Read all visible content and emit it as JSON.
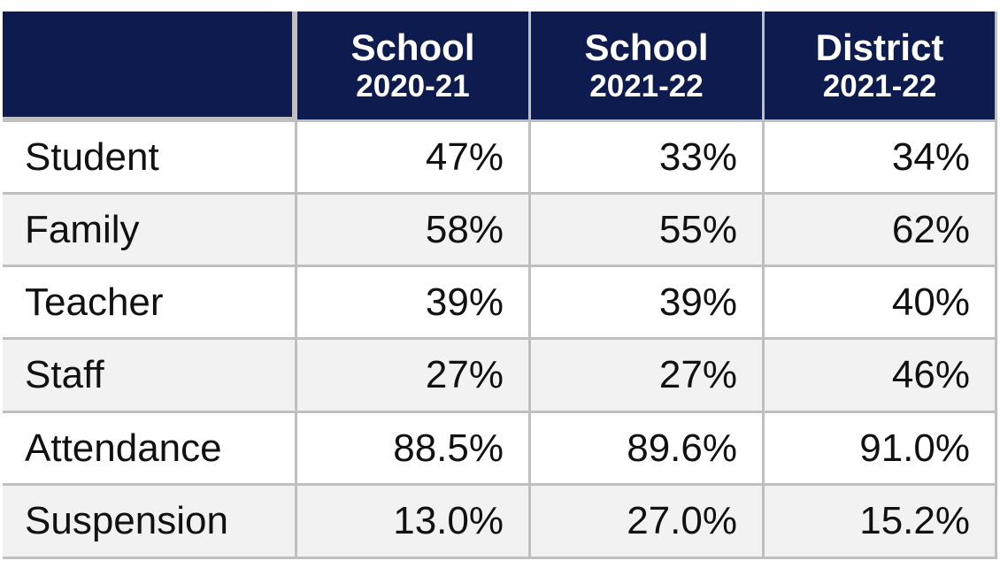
{
  "table": {
    "header": [
      {
        "line1": "School",
        "line2": "2020-21"
      },
      {
        "line1": "School",
        "line2": "2021-22"
      },
      {
        "line1": "District",
        "line2": "2021-22"
      }
    ],
    "rows": [
      [
        "Student",
        "47%",
        "33%",
        "34%"
      ],
      [
        "Family",
        "58%",
        "55%",
        "62%"
      ],
      [
        "Teacher",
        "39%",
        "39%",
        "40%"
      ],
      [
        "Staff",
        "27%",
        "27%",
        "46%"
      ],
      [
        "Attendance",
        "88.5%",
        "89.6%",
        "91.0%"
      ],
      [
        "Suspension",
        "13.0%",
        "27.0%",
        "15.2%"
      ]
    ]
  }
}
